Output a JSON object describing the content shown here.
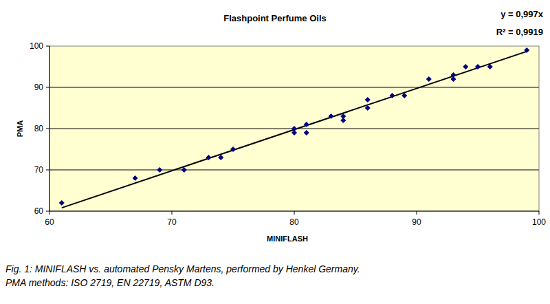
{
  "chart_data": {
    "type": "scatter",
    "title": "Flashpoint Perfume Oils",
    "x_label": "MINIFLASH",
    "y_label": "PMA",
    "x": [
      61,
      67,
      69,
      71,
      73,
      74,
      75,
      80,
      80,
      81,
      81,
      83,
      84,
      84,
      86,
      86,
      88,
      89,
      91,
      93,
      93,
      94,
      95,
      96,
      99
    ],
    "values": [
      62,
      68,
      70,
      70,
      73,
      73,
      75,
      80,
      79,
      81,
      79,
      83,
      83,
      82,
      87,
      85,
      88,
      88,
      92,
      93,
      92,
      95,
      95,
      95,
      99
    ],
    "color": "#000080",
    "marker": "diamond",
    "xlim": [
      60,
      100
    ],
    "xticks": [
      60,
      70,
      80,
      90,
      100
    ],
    "ylim": [
      60,
      100
    ],
    "yticks": [
      60,
      70,
      80,
      90,
      100
    ],
    "grid": true,
    "trendline": {
      "slope": 0.997,
      "label": "y = 0,997x",
      "r_squared_label": "R² = 0,9919"
    },
    "caption": [
      "Fig. 1: MINIFLASH vs. automated Pensky Martens, performed by Henkel Germany.",
      "PMA methods: ISO 2719, EN 22719, ASTM D93."
    ]
  }
}
